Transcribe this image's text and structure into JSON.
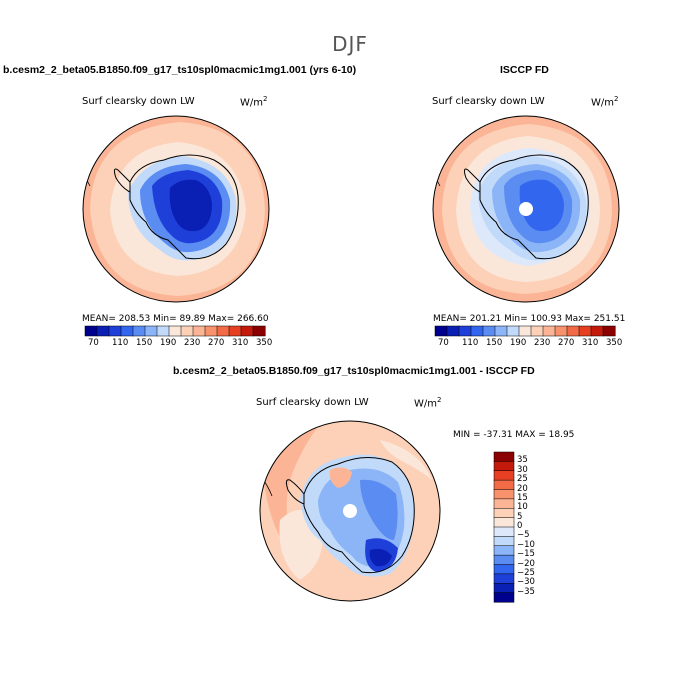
{
  "season": "DJF",
  "colors": {
    "palette_abs": [
      "#00008f",
      "#0a1fb3",
      "#1f3fd9",
      "#3366ee",
      "#5a8cf2",
      "#8cb5f7",
      "#c2dafa",
      "#fbe7da",
      "#fcd1b7",
      "#fbb596",
      "#f8926c",
      "#f36b46",
      "#e63f22",
      "#c41a0c",
      "#8b0000"
    ],
    "palette_diff": [
      "#00008f",
      "#0a1fb3",
      "#1f3fd9",
      "#3366ee",
      "#5a8cf2",
      "#8cb5f7",
      "#c2dafa",
      "#dde9fb",
      "#fbe7da",
      "#fcd1b7",
      "#fbb596",
      "#f8926c",
      "#f36b46",
      "#e63f22",
      "#c41a0c",
      "#8b0000"
    ]
  },
  "chart_data": [
    {
      "type": "heatmap",
      "projection": "south-polar stereographic",
      "title": "b.cesm2_2_beta05.B1850.f09_g17_ts10spl0macmic1mg1.001 (yrs 6-10)",
      "variable": "Surf clearsky down LW",
      "units_base": "W/m",
      "units_exp": "2",
      "stats": "MEAN= 208.53   Min=  89.89   Max= 266.60",
      "mean": 208.53,
      "min": 89.89,
      "max": 266.6,
      "colorbar_ticks": [
        "70",
        "110",
        "150",
        "190",
        "230",
        "270",
        "310",
        "350"
      ]
    },
    {
      "type": "heatmap",
      "projection": "south-polar stereographic",
      "title": "ISCCP FD",
      "variable": "Surf clearsky down LW",
      "units_base": "W/m",
      "units_exp": "2",
      "stats": "MEAN= 201.21   Min= 100.93   Max= 251.51",
      "mean": 201.21,
      "min": 100.93,
      "max": 251.51,
      "colorbar_ticks": [
        "70",
        "110",
        "150",
        "190",
        "230",
        "270",
        "310",
        "350"
      ]
    },
    {
      "type": "heatmap",
      "projection": "south-polar stereographic",
      "title": "b.cesm2_2_beta05.B1850.f09_g17_ts10spl0macmic1mg1.001 - ISCCP FD",
      "variable": "Surf clearsky down LW",
      "units_base": "W/m",
      "units_exp": "2",
      "stats": "MIN = -37.31  MAX =  18.95",
      "min": -37.31,
      "max": 18.95,
      "colorbar_ticks": [
        "35",
        "30",
        "25",
        "20",
        "15",
        "10",
        "5",
        "0",
        "−5",
        "−10",
        "−15",
        "−20",
        "−25",
        "−30",
        "−35"
      ]
    }
  ]
}
